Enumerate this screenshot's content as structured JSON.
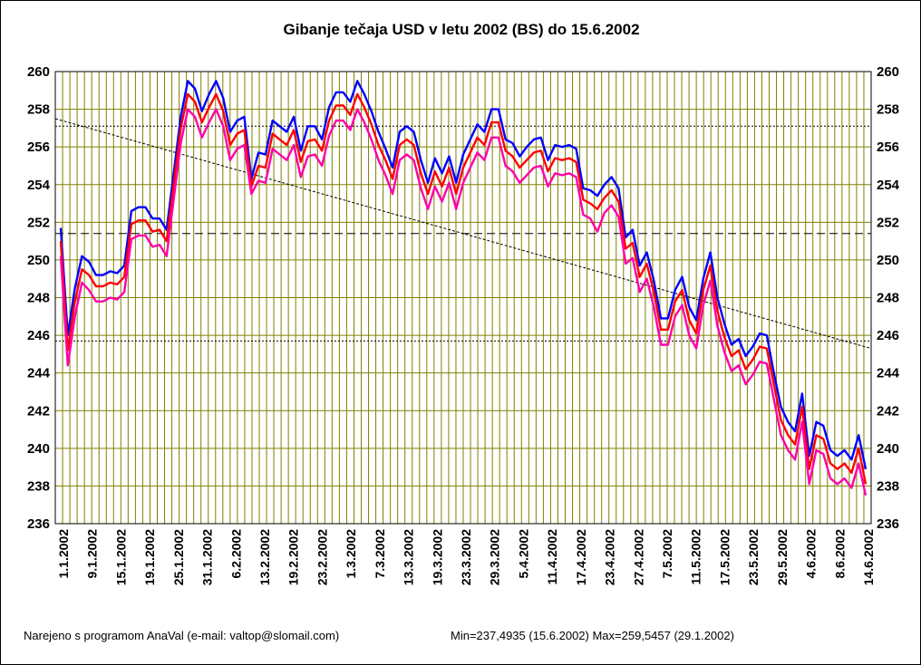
{
  "chart_data": {
    "type": "line",
    "title": "Gibanje tečaja USD v letu 2002 (BS) do 15.6.2002",
    "ylim": [
      236,
      260
    ],
    "yticks": [
      236,
      238,
      240,
      242,
      244,
      246,
      248,
      250,
      252,
      254,
      256,
      258,
      260
    ],
    "grid": true,
    "x_tick_labels": [
      "1.1.2002",
      "9.1.2002",
      "15.1.2002",
      "19.1.2002",
      "25.1.2002",
      "31.1.2002",
      "6.2.2002",
      "13.2.2002",
      "19.2.2002",
      "23.2.2002",
      "1.3.2002",
      "7.3.2002",
      "13.3.2002",
      "19.3.2002",
      "23.3.2002",
      "29.3.2002",
      "5.4.2002",
      "11.4.2002",
      "17.4.2002",
      "23.4.2002",
      "27.4.2002",
      "7.5.2002",
      "11.5.2002",
      "17.5.2002",
      "23.5.2002",
      "29.5.2002",
      "4.6.2002",
      "8.6.2002",
      "14.6.2002"
    ],
    "reference_lines": {
      "mean": 251.4,
      "upper": 257.1,
      "lower": 245.7,
      "trend": [
        257.5,
        245.3
      ]
    },
    "series": [
      {
        "values": [
          251.7,
          246.0,
          248.5,
          250.2,
          249.9,
          249.2,
          249.2,
          249.4,
          249.3,
          249.7,
          252.6,
          252.8,
          252.8,
          252.2,
          252.2,
          251.6,
          254.6,
          257.6,
          259.5,
          259.1,
          257.9,
          258.8,
          259.5,
          258.6,
          256.8,
          257.4,
          257.6,
          254.3,
          255.7,
          255.6,
          257.4,
          257.1,
          256.8,
          257.6,
          255.8,
          257.1,
          257.1,
          256.4,
          258.1,
          258.9,
          258.9,
          258.4,
          259.5,
          258.8,
          257.9,
          256.8,
          255.9,
          254.9,
          256.8,
          257.1,
          256.8,
          255.3,
          254.1,
          255.4,
          254.6,
          255.5,
          254.1,
          255.6,
          256.4,
          257.2,
          256.8,
          258.0,
          258.0,
          256.4,
          256.2,
          255.5,
          256.0,
          256.4,
          256.5,
          255.3,
          256.1,
          256.0,
          256.1,
          255.9,
          253.8,
          253.7,
          253.4,
          254.0,
          254.4,
          253.8,
          251.2,
          251.6,
          249.7,
          250.4,
          248.9,
          246.9,
          246.9,
          248.4,
          249.1,
          247.5,
          246.8,
          249.0,
          250.4,
          248.0,
          246.6,
          245.5,
          245.8,
          244.9,
          245.4,
          246.1,
          246.0,
          244.0,
          242.2,
          241.4,
          240.9,
          242.9,
          239.6,
          241.4,
          241.2,
          239.9,
          239.6,
          239.9,
          239.4,
          240.7,
          238.9
        ],
        "color": "#0000ff"
      },
      {
        "values": [
          251.0,
          245.2,
          247.8,
          249.5,
          249.2,
          248.6,
          248.6,
          248.8,
          248.7,
          249.1,
          251.9,
          252.1,
          252.1,
          251.5,
          251.6,
          251.0,
          254.0,
          257.0,
          258.8,
          258.4,
          257.3,
          258.1,
          258.8,
          257.9,
          256.1,
          256.7,
          256.9,
          253.9,
          255.0,
          254.9,
          256.7,
          256.4,
          256.1,
          256.9,
          255.2,
          256.3,
          256.4,
          255.8,
          257.4,
          258.2,
          258.2,
          257.7,
          258.8,
          258.1,
          257.2,
          256.1,
          255.3,
          254.3,
          256.1,
          256.4,
          256.1,
          254.6,
          253.5,
          254.7,
          253.9,
          254.9,
          253.5,
          254.9,
          255.7,
          256.5,
          256.1,
          257.3,
          257.3,
          255.8,
          255.5,
          254.9,
          255.3,
          255.7,
          255.8,
          254.7,
          255.4,
          255.3,
          255.4,
          255.2,
          253.2,
          253.0,
          252.7,
          253.3,
          253.7,
          253.1,
          250.6,
          250.9,
          249.1,
          249.8,
          248.3,
          246.3,
          246.3,
          247.8,
          248.4,
          246.8,
          246.1,
          248.4,
          249.7,
          247.3,
          245.9,
          244.9,
          245.2,
          244.2,
          244.7,
          245.4,
          245.3,
          243.4,
          241.5,
          240.7,
          240.2,
          242.2,
          238.9,
          240.7,
          240.5,
          239.2,
          238.9,
          239.2,
          238.7,
          240.0,
          238.1
        ],
        "color": "#ff0000"
      },
      {
        "values": [
          250.2,
          244.4,
          247.0,
          248.8,
          248.4,
          247.8,
          247.8,
          248.0,
          247.9,
          248.3,
          251.1,
          251.3,
          251.3,
          250.7,
          250.8,
          250.2,
          253.2,
          256.2,
          258.0,
          257.6,
          256.5,
          257.3,
          258.0,
          257.1,
          255.3,
          255.9,
          256.1,
          253.5,
          254.2,
          254.1,
          255.9,
          255.6,
          255.3,
          256.1,
          254.4,
          255.5,
          255.6,
          255.0,
          256.6,
          257.4,
          257.4,
          256.9,
          258.0,
          257.3,
          256.4,
          255.3,
          254.5,
          253.5,
          255.3,
          255.6,
          255.3,
          253.8,
          252.7,
          253.9,
          253.1,
          254.1,
          252.7,
          254.1,
          254.9,
          255.7,
          255.3,
          256.5,
          256.5,
          255.0,
          254.7,
          254.1,
          254.5,
          254.9,
          255.0,
          253.9,
          254.6,
          254.5,
          254.6,
          254.4,
          252.4,
          252.2,
          251.5,
          252.5,
          252.9,
          252.3,
          249.8,
          250.1,
          248.3,
          249.0,
          247.5,
          245.5,
          245.5,
          247.0,
          247.6,
          246.0,
          245.3,
          247.6,
          248.9,
          246.5,
          245.1,
          244.1,
          244.4,
          243.4,
          243.9,
          244.6,
          244.5,
          242.6,
          240.7,
          239.9,
          239.4,
          241.4,
          238.1,
          239.9,
          239.7,
          238.4,
          238.1,
          238.4,
          237.9,
          239.2,
          237.5
        ],
        "color": "#ff00aa"
      }
    ]
  },
  "footer": {
    "credit": "Narejeno s programom AnaVal (e-mail: valtop@slomail.com)",
    "stats": "Min=237,4935 (15.6.2002) Max=259,5457 (29.1.2002)"
  },
  "colors": {
    "grid": "#808000",
    "plot_bg": "#ffffff",
    "mean_line": "#000000"
  }
}
